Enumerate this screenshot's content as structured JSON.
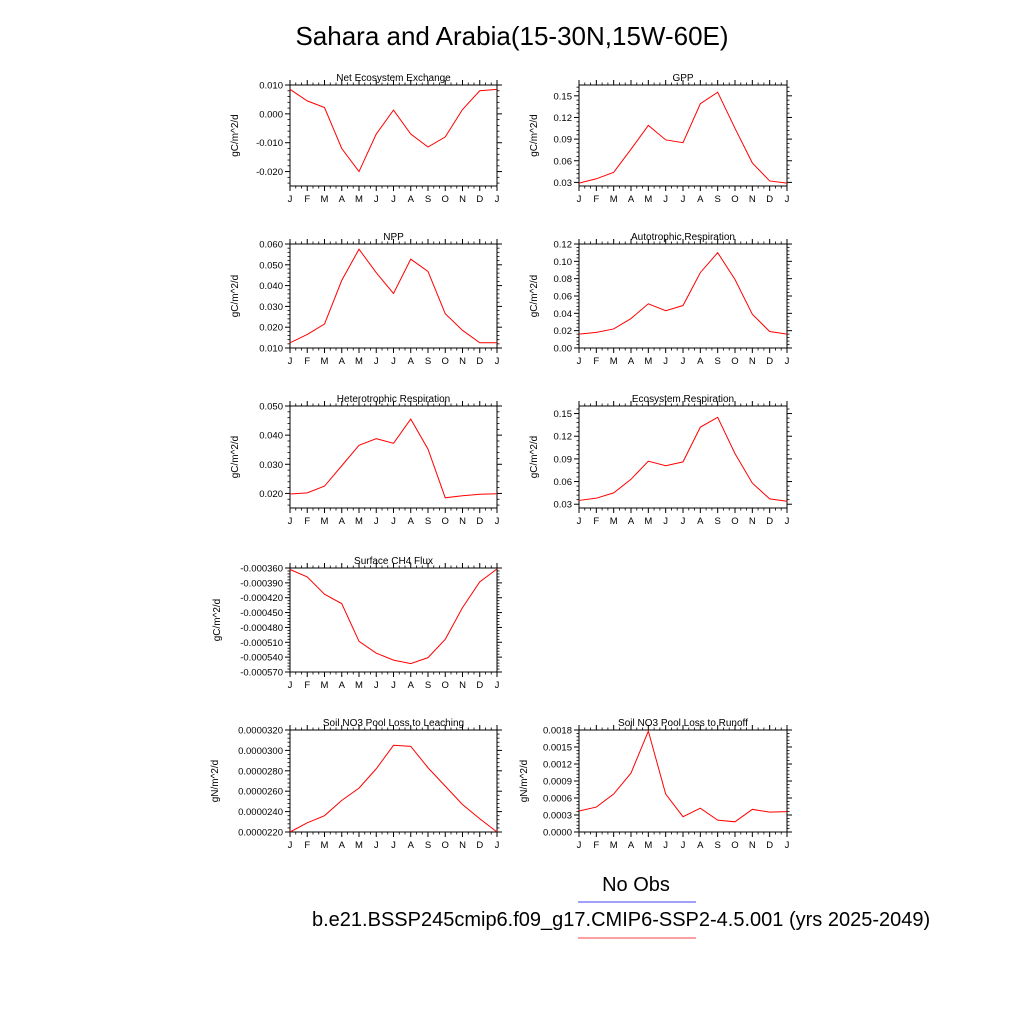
{
  "figure": {
    "title": "Sahara and Arabia(15-30N,15W-60E)",
    "legend": [
      {
        "label": "No Obs",
        "color": "#4040ff"
      },
      {
        "label": "b.e21.BSSP245cmip6.f09_g17.CMIP6-SSP2-4.5.001 (yrs 2025-2049)",
        "color": "#ff4040"
      }
    ],
    "series_color": "#ff0000"
  },
  "chart_data": [
    {
      "type": "line",
      "title": "Net Ecosystem Exchange",
      "ylabel": "gC/m^2/d",
      "x": [
        "J",
        "F",
        "M",
        "A",
        "M",
        "J",
        "J",
        "A",
        "S",
        "O",
        "N",
        "D",
        "J"
      ],
      "values": [
        0.0085,
        0.0045,
        0.0022,
        -0.012,
        -0.02,
        -0.007,
        0.0013,
        -0.007,
        -0.0115,
        -0.008,
        0.0015,
        0.008,
        0.0085
      ],
      "ylim": [
        -0.025,
        0.01
      ],
      "yticks": [
        -0.02,
        -0.01,
        0.0,
        0.01
      ],
      "ytick_labels": [
        "-0.020",
        "-0.010",
        "0.000",
        "0.010"
      ],
      "grid": false
    },
    {
      "type": "line",
      "title": "GPP",
      "ylabel": "gC/m^2/d",
      "x": [
        "J",
        "F",
        "M",
        "A",
        "M",
        "J",
        "J",
        "A",
        "S",
        "O",
        "N",
        "D",
        "J"
      ],
      "values": [
        0.029,
        0.035,
        0.044,
        0.076,
        0.109,
        0.089,
        0.085,
        0.139,
        0.155,
        0.105,
        0.057,
        0.032,
        0.029
      ],
      "ylim": [
        0.025,
        0.165
      ],
      "yticks": [
        0.03,
        0.06,
        0.09,
        0.12,
        0.15
      ],
      "ytick_labels": [
        "0.03",
        "0.06",
        "0.09",
        "0.12",
        "0.15"
      ],
      "grid": false
    },
    {
      "type": "line",
      "title": "NPP",
      "ylabel": "gC/m^2/d",
      "x": [
        "J",
        "F",
        "M",
        "A",
        "M",
        "J",
        "J",
        "A",
        "S",
        "O",
        "N",
        "D",
        "J"
      ],
      "values": [
        0.0125,
        0.0165,
        0.0215,
        0.0425,
        0.0575,
        0.0462,
        0.0362,
        0.0527,
        0.0468,
        0.0265,
        0.0185,
        0.0125,
        0.0125
      ],
      "ylim": [
        0.01,
        0.06
      ],
      "yticks": [
        0.01,
        0.02,
        0.03,
        0.04,
        0.05,
        0.06
      ],
      "ytick_labels": [
        "0.010",
        "0.020",
        "0.030",
        "0.040",
        "0.050",
        "0.060"
      ],
      "grid": false
    },
    {
      "type": "line",
      "title": "Autotrophic Respiration",
      "ylabel": "gC/m^2/d",
      "x": [
        "J",
        "F",
        "M",
        "A",
        "M",
        "J",
        "J",
        "A",
        "S",
        "O",
        "N",
        "D",
        "J"
      ],
      "values": [
        0.016,
        0.018,
        0.022,
        0.034,
        0.051,
        0.043,
        0.049,
        0.087,
        0.11,
        0.079,
        0.039,
        0.019,
        0.016
      ],
      "ylim": [
        0.0,
        0.12
      ],
      "yticks": [
        0.0,
        0.02,
        0.04,
        0.06,
        0.08,
        0.1,
        0.12
      ],
      "ytick_labels": [
        "0.00",
        "0.02",
        "0.04",
        "0.06",
        "0.08",
        "0.10",
        "0.12"
      ],
      "grid": false
    },
    {
      "type": "line",
      "title": "Heterotrophic Respiration",
      "ylabel": "gC/m^2/d",
      "x": [
        "J",
        "F",
        "M",
        "A",
        "M",
        "J",
        "J",
        "A",
        "S",
        "O",
        "N",
        "D",
        "J"
      ],
      "values": [
        0.0198,
        0.0202,
        0.0225,
        0.0295,
        0.0365,
        0.0388,
        0.0372,
        0.0455,
        0.0352,
        0.0185,
        0.0192,
        0.0197,
        0.0199
      ],
      "ylim": [
        0.015,
        0.05
      ],
      "yticks": [
        0.02,
        0.03,
        0.04,
        0.05
      ],
      "ytick_labels": [
        "0.020",
        "0.030",
        "0.040",
        "0.050"
      ],
      "grid": false
    },
    {
      "type": "line",
      "title": "Ecosystem Respiration",
      "ylabel": "gC/m^2/d",
      "x": [
        "J",
        "F",
        "M",
        "A",
        "M",
        "J",
        "J",
        "A",
        "S",
        "O",
        "N",
        "D",
        "J"
      ],
      "values": [
        0.035,
        0.038,
        0.045,
        0.063,
        0.087,
        0.081,
        0.086,
        0.132,
        0.145,
        0.097,
        0.058,
        0.037,
        0.034
      ],
      "ylim": [
        0.025,
        0.16
      ],
      "yticks": [
        0.03,
        0.06,
        0.09,
        0.12,
        0.15
      ],
      "ytick_labels": [
        "0.03",
        "0.06",
        "0.09",
        "0.12",
        "0.15"
      ],
      "grid": false
    },
    {
      "type": "line",
      "title": "Surface CH4 Flux",
      "ylabel": "gC/m^2/d",
      "x": [
        "J",
        "F",
        "M",
        "A",
        "M",
        "J",
        "J",
        "A",
        "S",
        "O",
        "N",
        "D",
        "J"
      ],
      "values": [
        -0.000363,
        -0.000378,
        -0.000413,
        -0.000432,
        -0.000508,
        -0.000532,
        -0.000546,
        -0.000553,
        -0.000541,
        -0.000504,
        -0.00044,
        -0.000388,
        -0.000362
      ],
      "ylim": [
        -0.00057,
        -0.00036
      ],
      "yticks": [
        -0.00057,
        -0.00054,
        -0.00051,
        -0.00048,
        -0.00045,
        -0.00042,
        -0.00039,
        -0.00036
      ],
      "ytick_labels": [
        "-0.000570",
        "-0.000540",
        "-0.000510",
        "-0.000480",
        "-0.000450",
        "-0.000420",
        "-0.000390",
        "-0.000360"
      ],
      "grid": false
    },
    {
      "type": "line",
      "title": "Soil NO3 Pool Loss to Leaching",
      "ylabel": "gN/m^2/d",
      "x": [
        "J",
        "F",
        "M",
        "A",
        "M",
        "J",
        "J",
        "A",
        "S",
        "O",
        "N",
        "D",
        "J"
      ],
      "values": [
        2.2e-05,
        2.29e-05,
        2.36e-05,
        2.51e-05,
        2.63e-05,
        2.82e-05,
        3.05e-05,
        3.04e-05,
        2.83e-05,
        2.65e-05,
        2.47e-05,
        2.33e-05,
        2.2e-05
      ],
      "ylim": [
        2.2e-05,
        3.2e-05
      ],
      "yticks": [
        2.2e-05,
        2.4e-05,
        2.6e-05,
        2.8e-05,
        3e-05,
        3.2e-05
      ],
      "ytick_labels": [
        "0.0000220",
        "0.0000240",
        "0.0000260",
        "0.0000280",
        "0.0000300",
        "0.0000320"
      ],
      "grid": false
    },
    {
      "type": "line",
      "title": "Soil NO3 Pool Loss to Runoff",
      "ylabel": "gN/m^2/d",
      "x": [
        "J",
        "F",
        "M",
        "A",
        "M",
        "J",
        "J",
        "A",
        "S",
        "O",
        "N",
        "D",
        "J"
      ],
      "values": [
        0.00037,
        0.00044,
        0.00067,
        0.00104,
        0.00178,
        0.00067,
        0.00027,
        0.00042,
        0.00021,
        0.00018,
        0.0004,
        0.00035,
        0.00036
      ],
      "ylim": [
        0.0,
        0.0018
      ],
      "yticks": [
        0.0,
        0.0003,
        0.0006,
        0.0009,
        0.0012,
        0.0015,
        0.0018
      ],
      "ytick_labels": [
        "0.0000",
        "0.0003",
        "0.0006",
        "0.0009",
        "0.0012",
        "0.0015",
        "0.0018"
      ],
      "grid": false
    }
  ]
}
